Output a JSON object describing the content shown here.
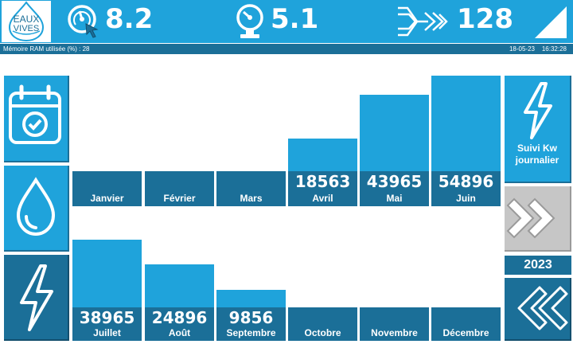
{
  "header": {
    "logo_line1": "EAUX",
    "logo_line2": "VIVES",
    "metric1": {
      "icon": "gauge-cursor-icon",
      "value": "8.2"
    },
    "metric2": {
      "icon": "pressure-gauge-icon",
      "value": "5.1"
    },
    "metric3": {
      "icon": "flow-merge-icon",
      "value": "128"
    }
  },
  "status": {
    "ram_text": "Mémoire RAM utilisée (%) : 28",
    "date": "18-05-23",
    "time": "16:32:28"
  },
  "left_buttons": [
    {
      "icon": "calendar-check-icon"
    },
    {
      "icon": "water-drop-icon"
    },
    {
      "icon": "lightning-icon"
    }
  ],
  "right_panel": {
    "kw_label_line1": "Suivi Kw",
    "kw_label_line2": "journalier",
    "year": "2023"
  },
  "chart_data": {
    "type": "bar",
    "unit_note": "",
    "ylim": [
      0,
      54896
    ],
    "months": [
      {
        "label": "Janvier",
        "value": null,
        "value_text": ""
      },
      {
        "label": "Février",
        "value": null,
        "value_text": ""
      },
      {
        "label": "Mars",
        "value": null,
        "value_text": ""
      },
      {
        "label": "Avril",
        "value": 18563,
        "value_text": "18563"
      },
      {
        "label": "Mai",
        "value": 43965,
        "value_text": "43965"
      },
      {
        "label": "Juin",
        "value": 54896,
        "value_text": "54896"
      },
      {
        "label": "Juillet",
        "value": 38965,
        "value_text": "38965"
      },
      {
        "label": "Août",
        "value": 24896,
        "value_text": "24896"
      },
      {
        "label": "Septembre",
        "value": 9856,
        "value_text": "9856"
      },
      {
        "label": "Octobre",
        "value": null,
        "value_text": ""
      },
      {
        "label": "Novembre",
        "value": null,
        "value_text": ""
      },
      {
        "label": "Décembre",
        "value": null,
        "value_text": ""
      }
    ]
  },
  "colors": {
    "accent": "#1fa3db",
    "dark": "#1b6f98",
    "gray": "#c6c6c6"
  }
}
